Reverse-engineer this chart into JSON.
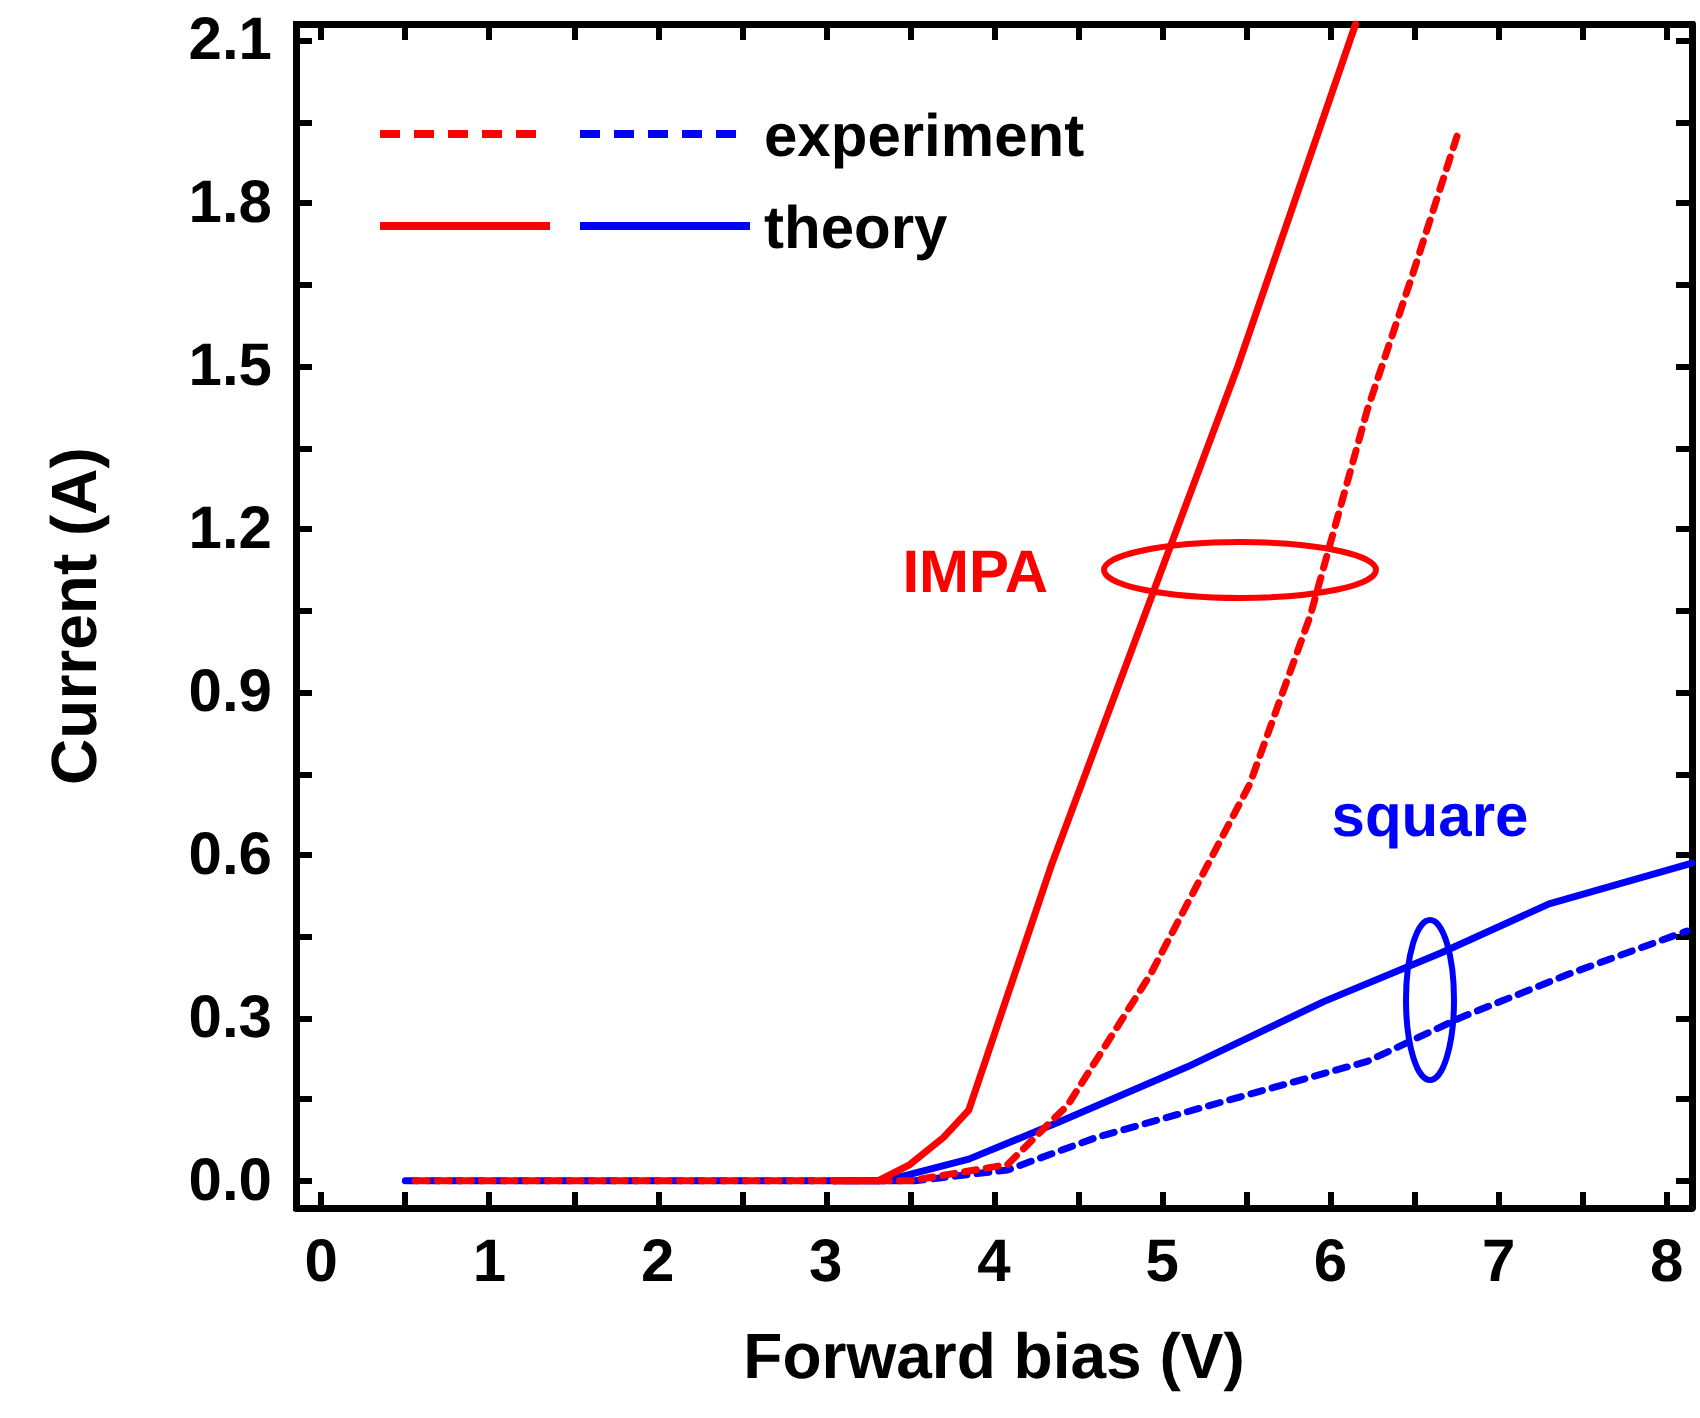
{
  "chart_data": {
    "type": "line",
    "xlabel": "Forward bias (V)",
    "ylabel": "Current (A)",
    "xlim": [
      -0.15,
      8.15
    ],
    "ylim": [
      -0.05,
      2.13
    ],
    "xticks": [
      0,
      {
        "value": 0.5,
        "label": null
      },
      1,
      {
        "value": 1.5,
        "label": null
      },
      2,
      {
        "value": 2.5,
        "label": null
      },
      3,
      {
        "value": 3.5,
        "label": null
      },
      4,
      {
        "value": 4.5,
        "label": null
      },
      5,
      {
        "value": 5.5,
        "label": null
      },
      6,
      {
        "value": 6.5,
        "label": null
      },
      7,
      {
        "value": 7.5,
        "label": null
      },
      8
    ],
    "yticks": [
      {
        "value": 0,
        "label": "0.0"
      },
      {
        "value": 0.15,
        "label": null
      },
      {
        "value": 0.3,
        "label": "0.3"
      },
      {
        "value": 0.45,
        "label": null
      },
      {
        "value": 0.6,
        "label": "0.6"
      },
      {
        "value": 0.75,
        "label": null
      },
      {
        "value": 0.9,
        "label": "0.9"
      },
      {
        "value": 1.05,
        "label": null
      },
      {
        "value": 1.2,
        "label": "1.2"
      },
      {
        "value": 1.35,
        "label": null
      },
      {
        "value": 1.5,
        "label": "1.5"
      },
      {
        "value": 1.65,
        "label": null
      },
      {
        "value": 1.8,
        "label": "1.8"
      },
      {
        "value": 1.95,
        "label": null
      },
      {
        "value": 2.1,
        "label": "2.1"
      }
    ],
    "grid": false,
    "legend": "top left",
    "marker": "none",
    "series": [
      {
        "color": "#ff0000",
        "line_style": "dashed",
        "x": [
          0.5,
          1.5,
          2.5,
          3.5,
          4.08,
          4.44,
          4.93,
          5.52,
          5.88,
          6.22,
          6.49,
          6.77
        ],
        "values": [
          0,
          0,
          0,
          0,
          0.03,
          0.14,
          0.38,
          0.73,
          1.04,
          1.42,
          1.67,
          1.94
        ]
      },
      {
        "name": "experiment",
        "color": "#0000ff",
        "line_style": "dashed",
        "x": [
          0.5,
          1.5,
          2.5,
          3.53,
          4.08,
          4.61,
          5.41,
          6.22,
          6.77,
          7.41,
          8.12
        ],
        "values": [
          0,
          0,
          0,
          0,
          0.02,
          0.08,
          0.15,
          0.22,
          0.3,
          0.38,
          0.46
        ]
      },
      {
        "color": "#ff0000",
        "line_style": "solid",
        "x": [
          3.05,
          3.31,
          3.5,
          3.7,
          3.85,
          4.34,
          4.93,
          5.45,
          6.15
        ],
        "values": [
          0,
          0,
          0.03,
          0.08,
          0.13,
          0.58,
          1.07,
          1.5,
          2.13
        ]
      },
      {
        "name": "theory",
        "color": "#0000ff",
        "line_style": "solid",
        "x": [
          3.05,
          3.35,
          3.85,
          4.4,
          5.15,
          5.96,
          6.66,
          7.3,
          8.15
        ],
        "values": [
          0,
          0,
          0.04,
          0.11,
          0.21,
          0.33,
          0.42,
          0.51,
          0.585
        ]
      }
    ],
    "annotations": [
      "IMPA",
      "square"
    ]
  }
}
